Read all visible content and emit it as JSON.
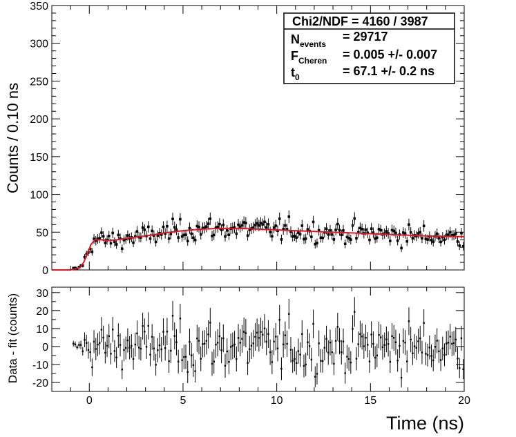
{
  "chart_data": [
    {
      "type": "scatter",
      "panel": "top",
      "ylabel": "Counts / 0.10 ns",
      "xlim": [
        -2,
        20
      ],
      "ylim": [
        0,
        350
      ],
      "yticks": [
        0,
        50,
        100,
        150,
        200,
        250,
        300,
        350
      ],
      "stats": {
        "chi2_label": "Chi2/NDF = 4160 / 3987",
        "nevents_main": "N",
        "nevents_sub": "events",
        "nevents_value": "= 29717",
        "fcheren_main": "F",
        "fcheren_sub": "Cheren",
        "fcheren_value": "= 0.005 +/- 0.007",
        "t0_main": "t",
        "t0_sub": "0",
        "t0_value": "= 67.1 +/- 0.2 ns"
      },
      "series": [
        {
          "name": "data",
          "style": "points with error bars",
          "color": "#000000"
        },
        {
          "name": "fit",
          "style": "line",
          "color": "#e8111f",
          "x": [
            -2.0,
            -1.0,
            -0.5,
            -0.3,
            -0.1,
            0.1,
            0.3,
            0.6,
            1.0,
            1.5,
            2.0,
            3.0,
            4.0,
            5.0,
            6.0,
            7.0,
            8.0,
            9.0,
            10.0,
            12.0,
            14.0,
            16.0,
            18.0,
            20.0
          ],
          "values": [
            0,
            0,
            3,
            10,
            22,
            34,
            40,
            40,
            39,
            40,
            42,
            45,
            49,
            52,
            54,
            55,
            55,
            54,
            53,
            51,
            49,
            47,
            45,
            44
          ]
        }
      ]
    },
    {
      "type": "scatter",
      "panel": "bottom",
      "ylabel": "Data - fit (counts)",
      "xlabel": "Time (ns)",
      "xlim": [
        -2,
        20
      ],
      "ylim": [
        -25,
        33
      ],
      "yticks": [
        -20,
        -10,
        0,
        10,
        20,
        30
      ],
      "xticks": [
        0,
        5,
        10,
        15,
        20
      ],
      "series": [
        {
          "name": "residuals",
          "style": "points with error bars",
          "color": "#000000"
        }
      ]
    }
  ]
}
